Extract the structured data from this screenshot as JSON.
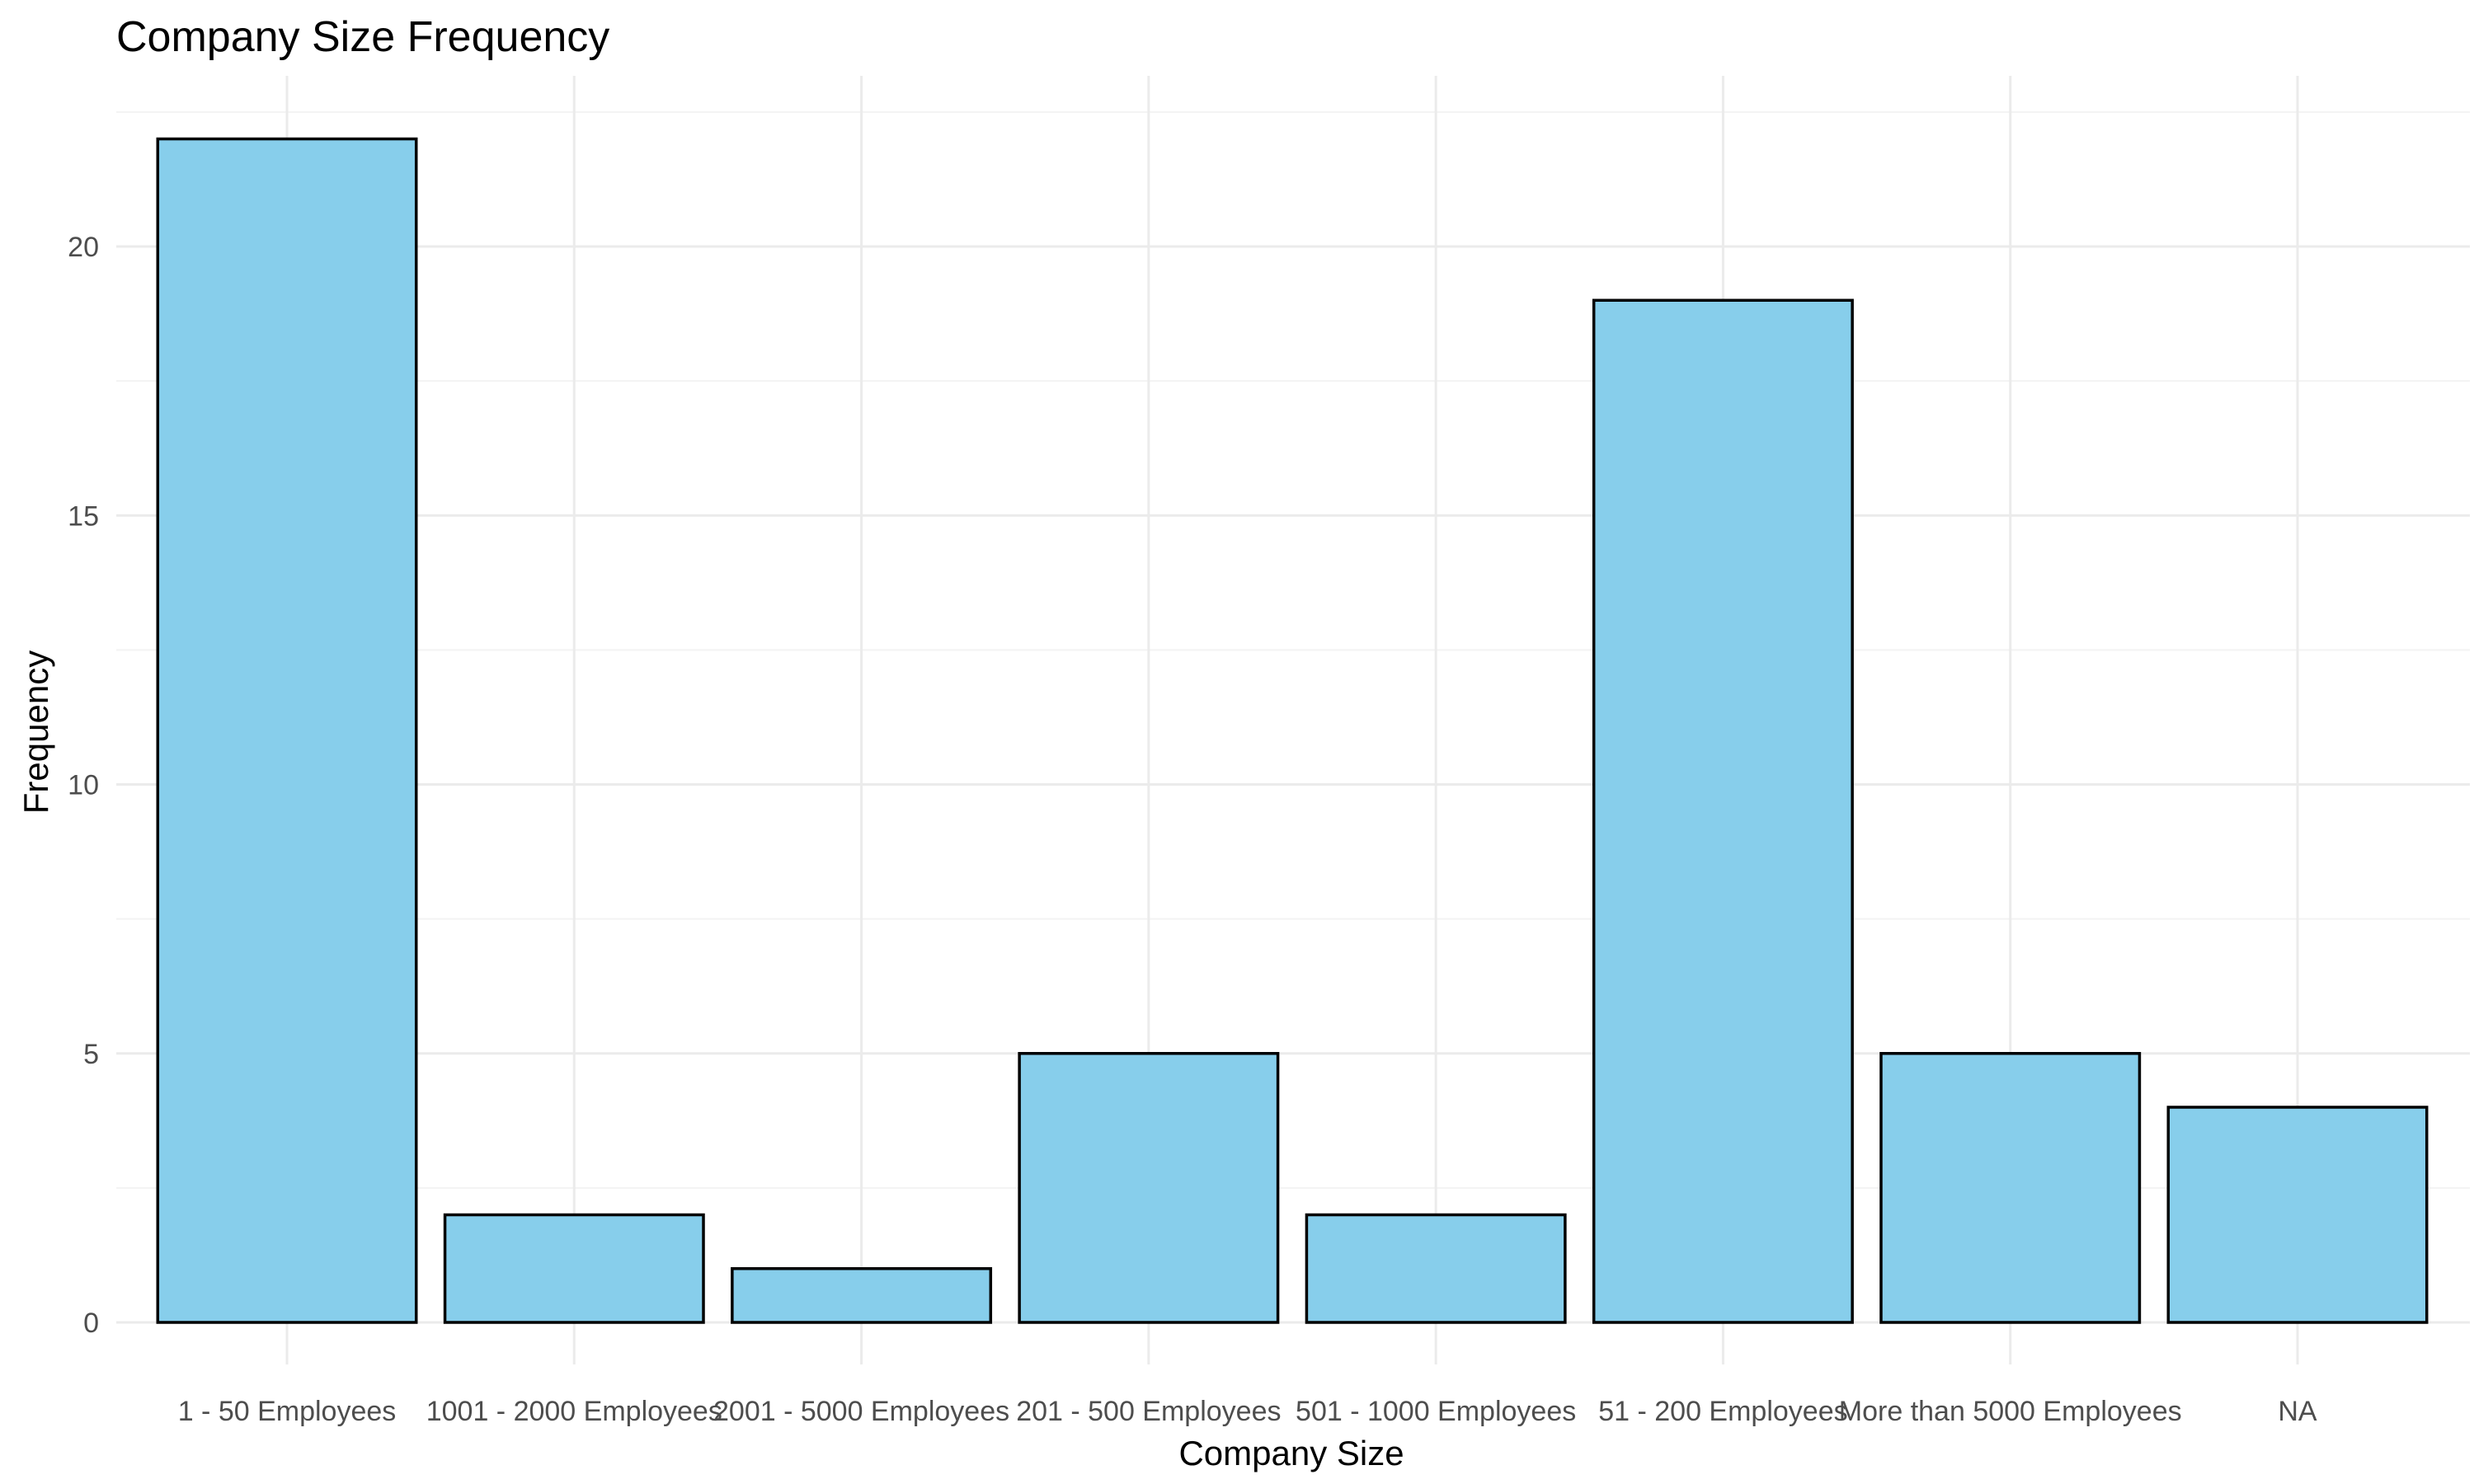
{
  "chart_data": {
    "type": "bar",
    "title": "Company Size Frequency",
    "xlabel": "Company Size",
    "ylabel": "Frequency",
    "categories": [
      "1 - 50 Employees",
      "1001 - 2000 Employees",
      "2001 - 5000 Employees",
      "201 - 500 Employees",
      "501 - 1000 Employees",
      "51 - 200 Employees",
      "More than 5000 Employees",
      "NA"
    ],
    "values": [
      22,
      2,
      1,
      5,
      2,
      19,
      5,
      4
    ],
    "ylim": [
      0,
      23
    ],
    "yticks": [
      0,
      5,
      10,
      15,
      20
    ],
    "ytick_labels": [
      "0",
      "5",
      "10",
      "15",
      "20"
    ],
    "grid": true,
    "legend": "none",
    "colors": {
      "bar_fill": "#87CEEB",
      "bar_stroke": "#000000",
      "grid_major": "#ebebeb",
      "grid_minor": "#f3f3f3",
      "background": "#ffffff"
    }
  }
}
